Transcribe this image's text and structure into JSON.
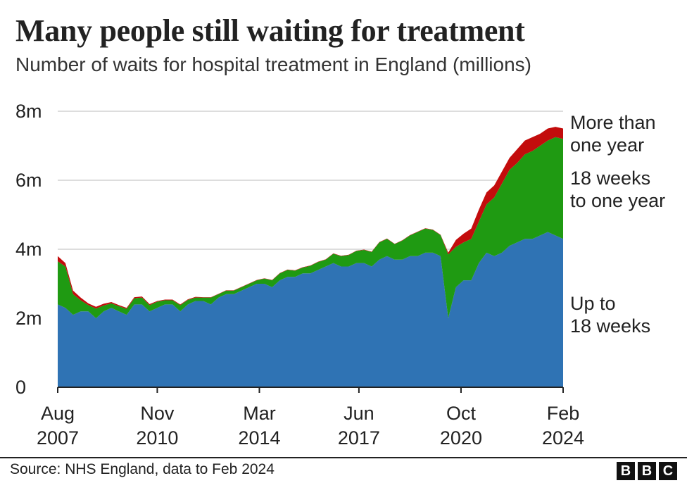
{
  "header": {
    "title": "Many people still waiting for treatment",
    "subtitle": "Number of waits for hospital treatment in England (millions)"
  },
  "footer": {
    "source": "Source: NHS England, data to Feb 2024",
    "logo": [
      "B",
      "B",
      "C"
    ]
  },
  "colors": {
    "up_to_18_weeks": "#2f73b4",
    "18_weeks_to_one_year": "#1f9a12",
    "more_than_one_year": "#c30c0c",
    "gridline": "#d2d2d2",
    "axis": "#222222"
  },
  "chart_data": {
    "type": "area",
    "stacked": true,
    "ylim": [
      0,
      8
    ],
    "y_ticks": [
      0,
      2,
      4,
      6,
      8
    ],
    "y_tick_labels": [
      "0",
      "2m",
      "4m",
      "6m",
      "8m"
    ],
    "x_ticks": [
      {
        "date": "2007-08",
        "label": [
          "Aug",
          "2007"
        ]
      },
      {
        "date": "2010-11",
        "label": [
          "Nov",
          "2010"
        ]
      },
      {
        "date": "2014-03",
        "label": [
          "Mar",
          "2014"
        ]
      },
      {
        "date": "2017-06",
        "label": [
          "Jun",
          "2017"
        ]
      },
      {
        "date": "2020-10",
        "label": [
          "Oct",
          "2020"
        ]
      },
      {
        "date": "2024-02",
        "label": [
          "Feb",
          "2024"
        ]
      }
    ],
    "grid": true,
    "labels": {
      "more_than_one_year": [
        "More than",
        "one year"
      ],
      "18_weeks_to_one_year": [
        "18 weeks",
        "to one year"
      ],
      "up_to_18_weeks": [
        "Up to",
        "18 weeks"
      ]
    },
    "x": [
      "2007-08",
      "2007-11",
      "2008-02",
      "2008-05",
      "2008-08",
      "2008-11",
      "2009-02",
      "2009-05",
      "2009-08",
      "2009-11",
      "2010-02",
      "2010-05",
      "2010-08",
      "2010-11",
      "2011-02",
      "2011-05",
      "2011-08",
      "2011-11",
      "2012-02",
      "2012-05",
      "2012-08",
      "2012-11",
      "2013-02",
      "2013-05",
      "2013-08",
      "2013-11",
      "2014-02",
      "2014-05",
      "2014-08",
      "2014-11",
      "2015-02",
      "2015-05",
      "2015-08",
      "2015-11",
      "2016-02",
      "2016-05",
      "2016-08",
      "2016-11",
      "2017-02",
      "2017-05",
      "2017-08",
      "2017-11",
      "2018-02",
      "2018-05",
      "2018-08",
      "2018-11",
      "2019-02",
      "2019-05",
      "2019-08",
      "2019-11",
      "2020-02",
      "2020-05",
      "2020-08",
      "2020-11",
      "2021-02",
      "2021-05",
      "2021-08",
      "2021-11",
      "2022-02",
      "2022-05",
      "2022-08",
      "2022-11",
      "2023-02",
      "2023-05",
      "2023-08",
      "2023-11",
      "2024-02"
    ],
    "series": [
      {
        "name": "Up to 18 weeks",
        "key": "up_to_18_weeks",
        "values": [
          2.4,
          2.3,
          2.1,
          2.2,
          2.2,
          2.0,
          2.2,
          2.3,
          2.2,
          2.1,
          2.4,
          2.4,
          2.2,
          2.3,
          2.4,
          2.4,
          2.2,
          2.4,
          2.5,
          2.5,
          2.4,
          2.6,
          2.7,
          2.7,
          2.8,
          2.9,
          3.0,
          3.0,
          2.9,
          3.1,
          3.2,
          3.2,
          3.3,
          3.3,
          3.4,
          3.5,
          3.6,
          3.5,
          3.5,
          3.6,
          3.6,
          3.5,
          3.7,
          3.8,
          3.7,
          3.7,
          3.8,
          3.8,
          3.9,
          3.9,
          3.8,
          2.0,
          2.9,
          3.1,
          3.1,
          3.6,
          3.9,
          3.8,
          3.9,
          4.1,
          4.2,
          4.3,
          4.3,
          4.4,
          4.5,
          4.4,
          4.3
        ]
      },
      {
        "name": "18 weeks to one year",
        "key": "18_weeks_to_one_year",
        "values": [
          1.25,
          1.2,
          0.6,
          0.32,
          0.18,
          0.28,
          0.17,
          0.13,
          0.15,
          0.17,
          0.18,
          0.2,
          0.18,
          0.18,
          0.12,
          0.12,
          0.18,
          0.13,
          0.1,
          0.1,
          0.2,
          0.1,
          0.1,
          0.1,
          0.1,
          0.1,
          0.1,
          0.15,
          0.2,
          0.2,
          0.2,
          0.18,
          0.17,
          0.22,
          0.23,
          0.2,
          0.27,
          0.3,
          0.33,
          0.35,
          0.38,
          0.42,
          0.5,
          0.5,
          0.45,
          0.55,
          0.6,
          0.7,
          0.7,
          0.66,
          0.61,
          1.85,
          1.17,
          1.1,
          1.2,
          1.2,
          1.4,
          1.7,
          2.0,
          2.2,
          2.3,
          2.45,
          2.55,
          2.6,
          2.65,
          2.85,
          2.9
        ]
      },
      {
        "name": "More than one year",
        "key": "more_than_one_year",
        "values": [
          0.15,
          0.1,
          0.1,
          0.08,
          0.05,
          0.05,
          0.05,
          0.04,
          0.03,
          0.03,
          0.03,
          0.03,
          0.03,
          0.02,
          0.02,
          0.02,
          0.02,
          0.02,
          0.02,
          0.01,
          0.01,
          0.01,
          0.01,
          0.01,
          0.01,
          0.01,
          0.01,
          0.01,
          0.01,
          0.01,
          0.01,
          0.01,
          0.01,
          0.01,
          0.01,
          0.01,
          0.01,
          0.01,
          0.01,
          0.01,
          0.01,
          0.01,
          0.01,
          0.01,
          0.01,
          0.01,
          0.01,
          0.01,
          0.01,
          0.01,
          0.01,
          0.05,
          0.2,
          0.25,
          0.3,
          0.35,
          0.35,
          0.35,
          0.35,
          0.35,
          0.4,
          0.4,
          0.4,
          0.35,
          0.35,
          0.3,
          0.3
        ]
      }
    ]
  }
}
